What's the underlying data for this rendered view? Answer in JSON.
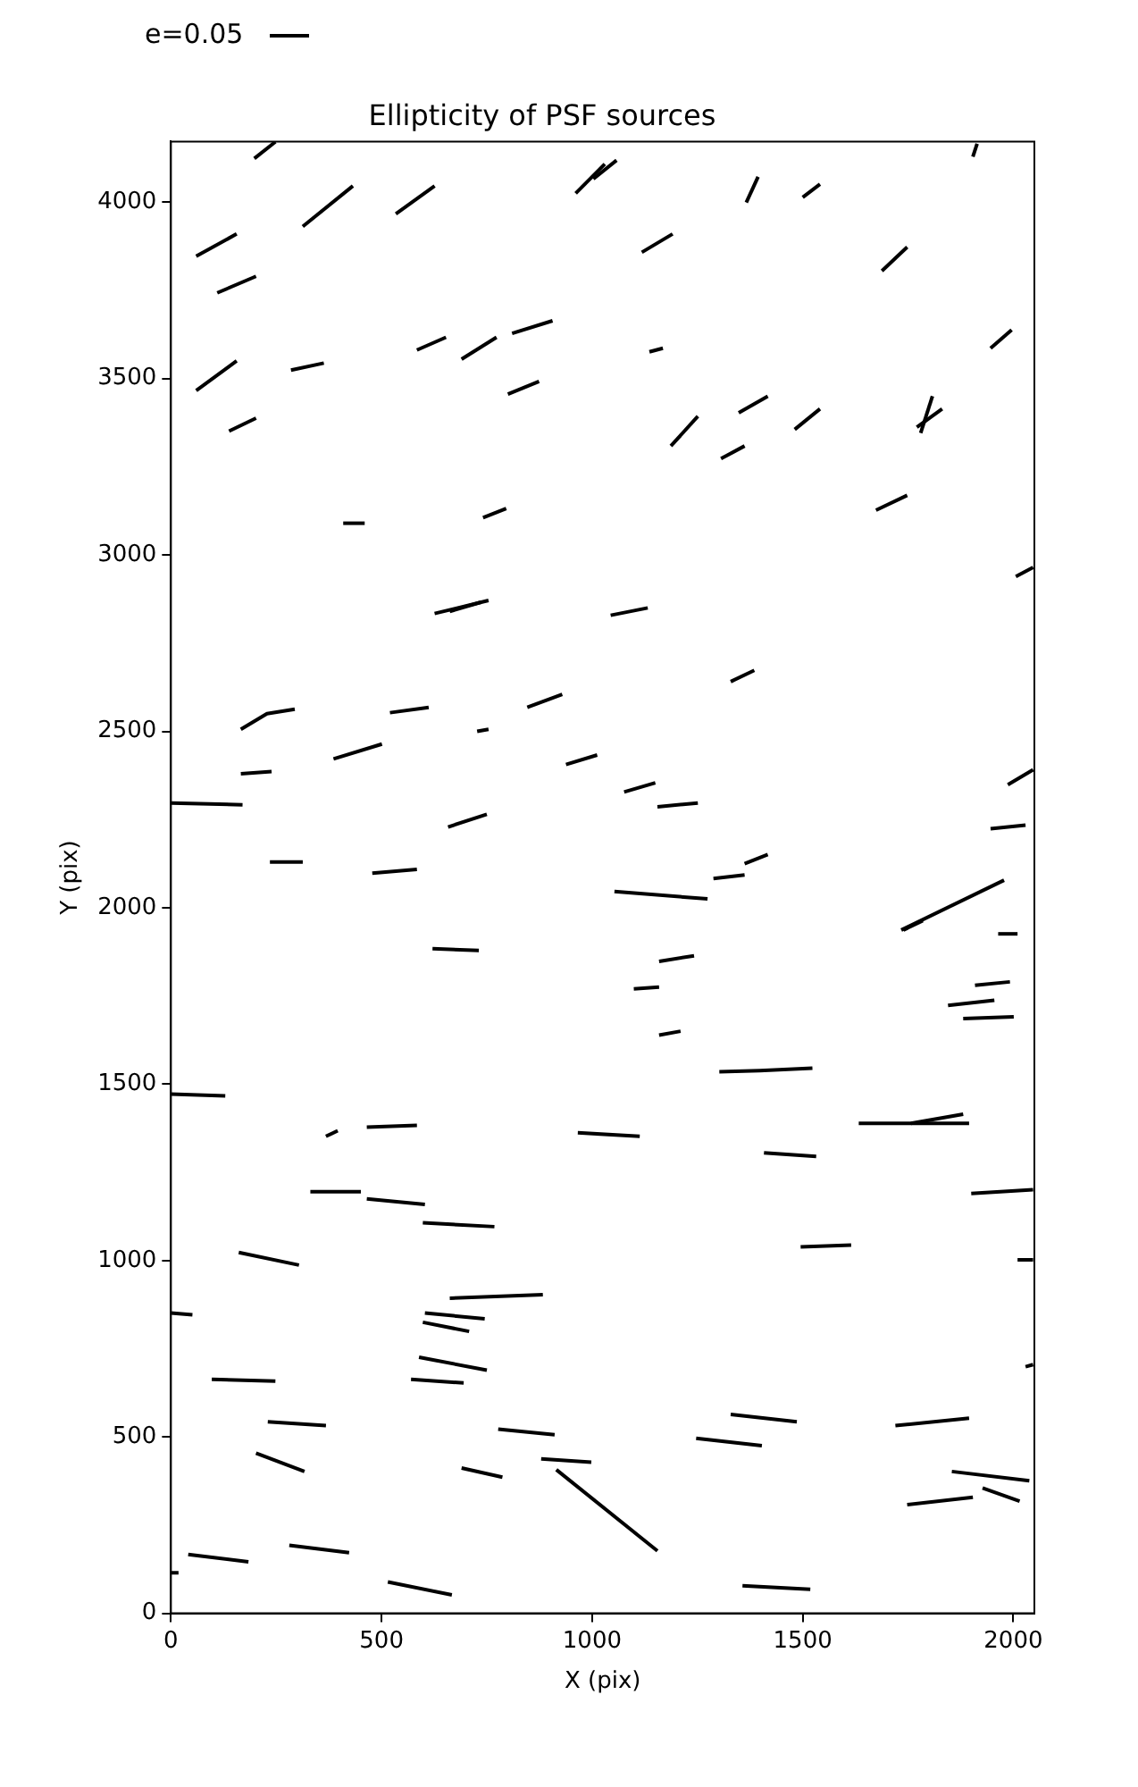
{
  "chart_data": {
    "type": "line",
    "title": "Ellipticity of PSF sources",
    "xlabel": "X (pix)",
    "ylabel": "Y (pix)",
    "annotations": [
      "e=0.05"
    ],
    "xlim": [
      0,
      2050
    ],
    "ylim": [
      0,
      4172
    ],
    "xticks": [
      0,
      500,
      1000,
      1500,
      2000
    ],
    "yticks": [
      0,
      500,
      1000,
      1500,
      2000,
      2500,
      3000,
      3500,
      4000
    ],
    "series": [
      {
        "color": "#000000",
        "x": [
          198,
          248
        ],
        "values": [
          4124,
          4171
        ]
      },
      {
        "color": "#000000",
        "x": [
          313,
          432
        ],
        "values": [
          3931,
          4046
        ]
      },
      {
        "color": "#000000",
        "x": [
          534,
          626
        ],
        "values": [
          3967,
          4046
        ]
      },
      {
        "color": "#000000",
        "x": [
          60,
          156
        ],
        "values": [
          3847,
          3910
        ]
      },
      {
        "color": "#000000",
        "x": [
          110,
          202
        ],
        "values": [
          3743,
          3790
        ]
      },
      {
        "color": "#000000",
        "x": [
          60,
          156
        ],
        "values": [
          3466,
          3550
        ]
      },
      {
        "color": "#000000",
        "x": [
          138,
          202
        ],
        "values": [
          3351,
          3388
        ]
      },
      {
        "color": "#000000",
        "x": [
          285,
          363
        ],
        "values": [
          3524,
          3544
        ]
      },
      {
        "color": "#000000",
        "x": [
          584,
          653
        ],
        "values": [
          3581,
          3617
        ]
      },
      {
        "color": "#000000",
        "x": [
          690,
          773
        ],
        "values": [
          3555,
          3617
        ]
      },
      {
        "color": "#000000",
        "x": [
          810,
          906
        ],
        "values": [
          3628,
          3664
        ]
      },
      {
        "color": "#000000",
        "x": [
          800,
          874
        ],
        "values": [
          3456,
          3492
        ]
      },
      {
        "color": "#000000",
        "x": [
          961,
          1030
        ],
        "values": [
          4025,
          4108
        ]
      },
      {
        "color": "#000000",
        "x": [
          1003,
          1058
        ],
        "values": [
          4066,
          4119
        ]
      },
      {
        "color": "#000000",
        "x": [
          1118,
          1191
        ],
        "values": [
          3858,
          3910
        ]
      },
      {
        "color": "#000000",
        "x": [
          1136,
          1168
        ],
        "values": [
          3576,
          3586
        ]
      },
      {
        "color": "#000000",
        "x": [
          1366,
          1394
        ],
        "values": [
          3999,
          4072
        ]
      },
      {
        "color": "#000000",
        "x": [
          1500,
          1541
        ],
        "values": [
          4014,
          4051
        ]
      },
      {
        "color": "#000000",
        "x": [
          1688,
          1748
        ],
        "values": [
          3805,
          3873
        ]
      },
      {
        "color": "#000000",
        "x": [
          1187,
          1251
        ],
        "values": [
          3309,
          3393
        ]
      },
      {
        "color": "#000000",
        "x": [
          1348,
          1417
        ],
        "values": [
          3403,
          3450
        ]
      },
      {
        "color": "#000000",
        "x": [
          1306,
          1362
        ],
        "values": [
          3273,
          3309
        ]
      },
      {
        "color": "#000000",
        "x": [
          1481,
          1541
        ],
        "values": [
          3356,
          3414
        ]
      },
      {
        "color": "#000000",
        "x": [
          1904,
          1914
        ],
        "values": [
          4129,
          4166
        ]
      },
      {
        "color": "#000000",
        "x": [
          1780,
          1808
        ],
        "values": [
          3346,
          3450
        ]
      },
      {
        "color": "#000000",
        "x": [
          1771,
          1831
        ],
        "values": [
          3362,
          3414
        ]
      },
      {
        "color": "#000000",
        "x": [
          1946,
          1996
        ],
        "values": [
          3586,
          3638
        ]
      },
      {
        "color": "#000000",
        "x": [
          1674,
          1748
        ],
        "values": [
          3127,
          3169
        ]
      },
      {
        "color": "#000000",
        "x": [
          409,
          460
        ],
        "values": [
          3090,
          3090
        ]
      },
      {
        "color": "#000000",
        "x": [
          741,
          796
        ],
        "values": [
          3106,
          3132
        ]
      },
      {
        "color": "#000000",
        "x": [
          2006,
          2047
        ],
        "values": [
          2939,
          2965
        ]
      },
      {
        "color": "#000000",
        "x": [
          626,
          754
        ],
        "values": [
          2834,
          2871
        ]
      },
      {
        "color": "#000000",
        "x": [
          662,
          736
        ],
        "values": [
          2840,
          2866
        ]
      },
      {
        "color": "#000000",
        "x": [
          1044,
          1132
        ],
        "values": [
          2829,
          2850
        ]
      },
      {
        "color": "#000000",
        "x": [
          1329,
          1385
        ],
        "values": [
          2641,
          2673
        ]
      },
      {
        "color": "#000000",
        "x": [
          166,
          228,
          294
        ],
        "values": [
          2506,
          2550,
          2563
        ]
      },
      {
        "color": "#000000",
        "x": [
          520,
          612
        ],
        "values": [
          2553,
          2568
        ]
      },
      {
        "color": "#000000",
        "x": [
          727,
          754
        ],
        "values": [
          2500,
          2506
        ]
      },
      {
        "color": "#000000",
        "x": [
          846,
          929
        ],
        "values": [
          2568,
          2605
        ]
      },
      {
        "color": "#000000",
        "x": [
          166,
          239
        ],
        "values": [
          2380,
          2386
        ]
      },
      {
        "color": "#000000",
        "x": [
          386,
          501
        ],
        "values": [
          2422,
          2464
        ]
      },
      {
        "color": "#000000",
        "x": [
          938,
          1012
        ],
        "values": [
          2406,
          2433
        ]
      },
      {
        "color": "#000000",
        "x": [
          1076,
          1150
        ],
        "values": [
          2328,
          2354
        ]
      },
      {
        "color": "#000000",
        "x": [
          1155,
          1251
        ],
        "values": [
          2286,
          2297
        ]
      },
      {
        "color": "#000000",
        "x": [
          0,
          170
        ],
        "values": [
          2297,
          2292
        ]
      },
      {
        "color": "#000000",
        "x": [
          658,
          750
        ],
        "values": [
          2229,
          2265
        ]
      },
      {
        "color": "#000000",
        "x": [
          1362,
          1417
        ],
        "values": [
          2125,
          2151
        ]
      },
      {
        "color": "#000000",
        "x": [
          1288,
          1362
        ],
        "values": [
          2083,
          2093
        ]
      },
      {
        "color": "#000000",
        "x": [
          1987,
          2047
        ],
        "values": [
          2349,
          2391
        ]
      },
      {
        "color": "#000000",
        "x": [
          1946,
          2029
        ],
        "values": [
          2224,
          2234
        ]
      },
      {
        "color": "#000000",
        "x": [
          235,
          313
        ],
        "values": [
          2130,
          2130
        ]
      },
      {
        "color": "#000000",
        "x": [
          478,
          584
        ],
        "values": [
          2098,
          2109
        ]
      },
      {
        "color": "#000000",
        "x": [
          1053,
          1274
        ],
        "values": [
          2046,
          2025
        ]
      },
      {
        "color": "#000000",
        "x": [
          621,
          731
        ],
        "values": [
          1884,
          1879
        ]
      },
      {
        "color": "#000000",
        "x": [
          1734,
          1978
        ],
        "values": [
          1937,
          2078
        ]
      },
      {
        "color": "#000000",
        "x": [
          1739,
          1785
        ],
        "values": [
          1937,
          1963
        ]
      },
      {
        "color": "#000000",
        "x": [
          1964,
          2010
        ],
        "values": [
          1926,
          1926
        ]
      },
      {
        "color": "#000000",
        "x": [
          1159,
          1242
        ],
        "values": [
          1848,
          1864
        ]
      },
      {
        "color": "#000000",
        "x": [
          1099,
          1159
        ],
        "values": [
          1770,
          1775
        ]
      },
      {
        "color": "#000000",
        "x": [
          1159,
          1210
        ],
        "values": [
          1639,
          1650
        ]
      },
      {
        "color": "#000000",
        "x": [
          1845,
          1955
        ],
        "values": [
          1723,
          1738
        ]
      },
      {
        "color": "#000000",
        "x": [
          1909,
          1992
        ],
        "values": [
          1780,
          1790
        ]
      },
      {
        "color": "#000000",
        "x": [
          1881,
          2001
        ],
        "values": [
          1686,
          1691
        ]
      },
      {
        "color": "#000000",
        "x": [
          1302,
          1398,
          1523
        ],
        "values": [
          1535,
          1538,
          1545
        ]
      },
      {
        "color": "#000000",
        "x": [
          0,
          129
        ],
        "values": [
          1472,
          1467
        ]
      },
      {
        "color": "#000000",
        "x": [
          368,
          396
        ],
        "values": [
          1352,
          1368
        ]
      },
      {
        "color": "#000000",
        "x": [
          465,
          584
        ],
        "values": [
          1378,
          1383
        ]
      },
      {
        "color": "#000000",
        "x": [
          966,
          1113
        ],
        "values": [
          1362,
          1352
        ]
      },
      {
        "color": "#000000",
        "x": [
          1408,
          1532
        ],
        "values": [
          1305,
          1295
        ]
      },
      {
        "color": "#000000",
        "x": [
          1633,
          1895
        ],
        "values": [
          1389,
          1389
        ]
      },
      {
        "color": "#000000",
        "x": [
          1757,
          1881
        ],
        "values": [
          1389,
          1415
        ]
      },
      {
        "color": "#000000",
        "x": [
          331,
          451
        ],
        "values": [
          1195,
          1195
        ]
      },
      {
        "color": "#000000",
        "x": [
          465,
          603
        ],
        "values": [
          1175,
          1159
        ]
      },
      {
        "color": "#000000",
        "x": [
          598,
          768
        ],
        "values": [
          1107,
          1096
        ]
      },
      {
        "color": "#000000",
        "x": [
          161,
          304
        ],
        "values": [
          1023,
          987
        ]
      },
      {
        "color": "#000000",
        "x": [
          1495,
          1615
        ],
        "values": [
          1039,
          1044
        ]
      },
      {
        "color": "#000000",
        "x": [
          2010,
          2047
        ],
        "values": [
          1002,
          1002
        ]
      },
      {
        "color": "#000000",
        "x": [
          1900,
          2047
        ],
        "values": [
          1190,
          1201
        ]
      },
      {
        "color": "#000000",
        "x": [
          0,
          51
        ],
        "values": [
          851,
          846
        ]
      },
      {
        "color": "#000000",
        "x": [
          662,
          883
        ],
        "values": [
          893,
          903
        ]
      },
      {
        "color": "#000000",
        "x": [
          603,
          745
        ],
        "values": [
          851,
          835
        ]
      },
      {
        "color": "#000000",
        "x": [
          598,
          708
        ],
        "values": [
          825,
          799
        ]
      },
      {
        "color": "#000000",
        "x": [
          589,
          750
        ],
        "values": [
          726,
          689
        ]
      },
      {
        "color": "#000000",
        "x": [
          570,
          695
        ],
        "values": [
          663,
          653
        ]
      },
      {
        "color": "#000000",
        "x": [
          97,
          248
        ],
        "values": [
          663,
          658
        ]
      },
      {
        "color": "#000000",
        "x": [
          2029,
          2047
        ],
        "values": [
          699,
          705
        ]
      },
      {
        "color": "#000000",
        "x": [
          230,
          368
        ],
        "values": [
          543,
          532
        ]
      },
      {
        "color": "#000000",
        "x": [
          777,
          911
        ],
        "values": [
          522,
          506
        ]
      },
      {
        "color": "#000000",
        "x": [
          1329,
          1486
        ],
        "values": [
          564,
          543
        ]
      },
      {
        "color": "#000000",
        "x": [
          1247,
          1403
        ],
        "values": [
          496,
          475
        ]
      },
      {
        "color": "#000000",
        "x": [
          1720,
          1895
        ],
        "values": [
          532,
          553
        ]
      },
      {
        "color": "#000000",
        "x": [
          1854,
          2038
        ],
        "values": [
          402,
          376
        ]
      },
      {
        "color": "#000000",
        "x": [
          1927,
          2015
        ],
        "values": [
          355,
          318
        ]
      },
      {
        "color": "#000000",
        "x": [
          1748,
          1904
        ],
        "values": [
          308,
          329
        ]
      },
      {
        "color": "#000000",
        "x": [
          202,
          317
        ],
        "values": [
          454,
          402
        ]
      },
      {
        "color": "#000000",
        "x": [
          690,
          787
        ],
        "values": [
          412,
          386
        ]
      },
      {
        "color": "#000000",
        "x": [
          879,
          998
        ],
        "values": [
          438,
          428
        ]
      },
      {
        "color": "#000000",
        "x": [
          915,
          1155
        ],
        "values": [
          407,
          177
        ]
      },
      {
        "color": "#000000",
        "x": [
          41,
          184
        ],
        "values": [
          167,
          146
        ]
      },
      {
        "color": "#000000",
        "x": [
          281,
          423
        ],
        "values": [
          193,
          172
        ]
      },
      {
        "color": "#000000",
        "x": [
          515,
          667
        ],
        "values": [
          89,
          52
        ]
      },
      {
        "color": "#000000",
        "x": [
          1357,
          1518
        ],
        "values": [
          78,
          68
        ]
      },
      {
        "color": "#000000",
        "x": [
          0,
          18
        ],
        "values": [
          115,
          115
        ]
      }
    ]
  }
}
